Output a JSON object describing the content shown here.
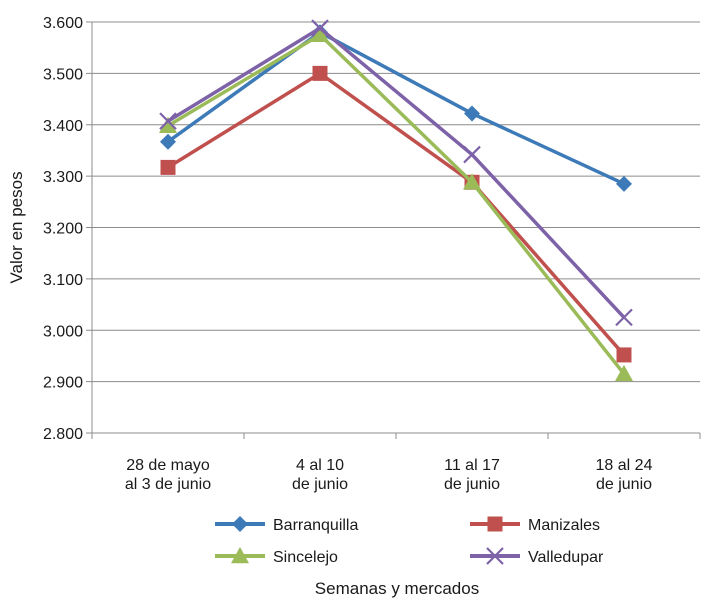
{
  "chart_data": {
    "type": "line",
    "xlabel": "Semanas y mercados",
    "ylabel": "Valor en pesos",
    "ylim": [
      2800,
      3600
    ],
    "y_ticks": [
      "3.600",
      "3.500",
      "3.400",
      "3.300",
      "3.200",
      "3.100",
      "3.000",
      "2.900",
      "2.800"
    ],
    "y_tick_values": [
      3600,
      3500,
      3400,
      3300,
      3200,
      3100,
      3000,
      2900,
      2800
    ],
    "grid": true,
    "legend_position": "bottom",
    "categories": [
      [
        "28 de mayo",
        "al 3 de junio"
      ],
      [
        "4 al 10",
        "de junio"
      ],
      [
        "11 al 17",
        "de junio"
      ],
      [
        "18 al 24",
        "de junio"
      ]
    ],
    "series": [
      {
        "name": "Barranquilla",
        "color": "#3d7ab8",
        "marker": "diamond",
        "values": [
          3367,
          3580,
          3422,
          3285
        ]
      },
      {
        "name": "Manizales",
        "color": "#c0504d",
        "marker": "square",
        "values": [
          3317,
          3500,
          3288,
          2952
        ]
      },
      {
        "name": "Sincelejo",
        "color": "#9bbb59",
        "marker": "triangle",
        "values": [
          3398,
          3575,
          3288,
          2915
        ]
      },
      {
        "name": "Valledupar",
        "color": "#7e62a8",
        "marker": "x",
        "values": [
          3407,
          3588,
          3342,
          3025
        ]
      }
    ]
  }
}
